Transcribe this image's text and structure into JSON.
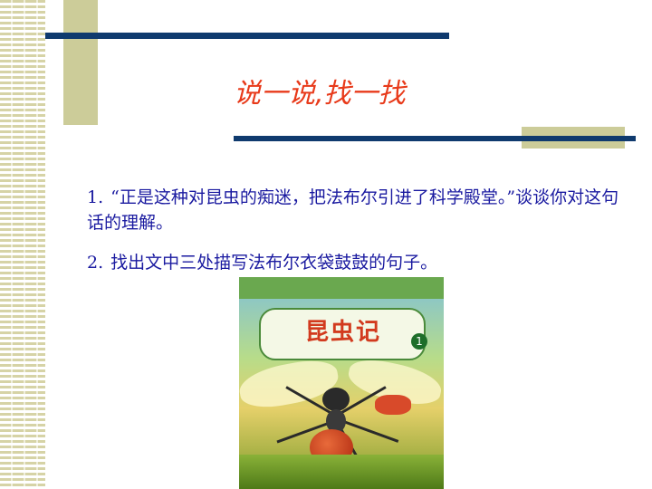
{
  "slide": {
    "title": "说一说,找一找",
    "questions": [
      {
        "num": "1.",
        "text": "“正是这种对昆虫的痴迷，把法布尔引进了科学殿堂。”谈谈你对这句话的理解。"
      },
      {
        "num": "2.",
        "text": "找出文中三处描写法布尔衣袋鼓鼓的句子。"
      }
    ]
  },
  "book": {
    "title": "昆虫记",
    "volume": "1"
  },
  "colors": {
    "title": "#e83a1a",
    "text": "#1a1aa0",
    "rule": "#0f3a6e",
    "accent": "#cccc99"
  }
}
